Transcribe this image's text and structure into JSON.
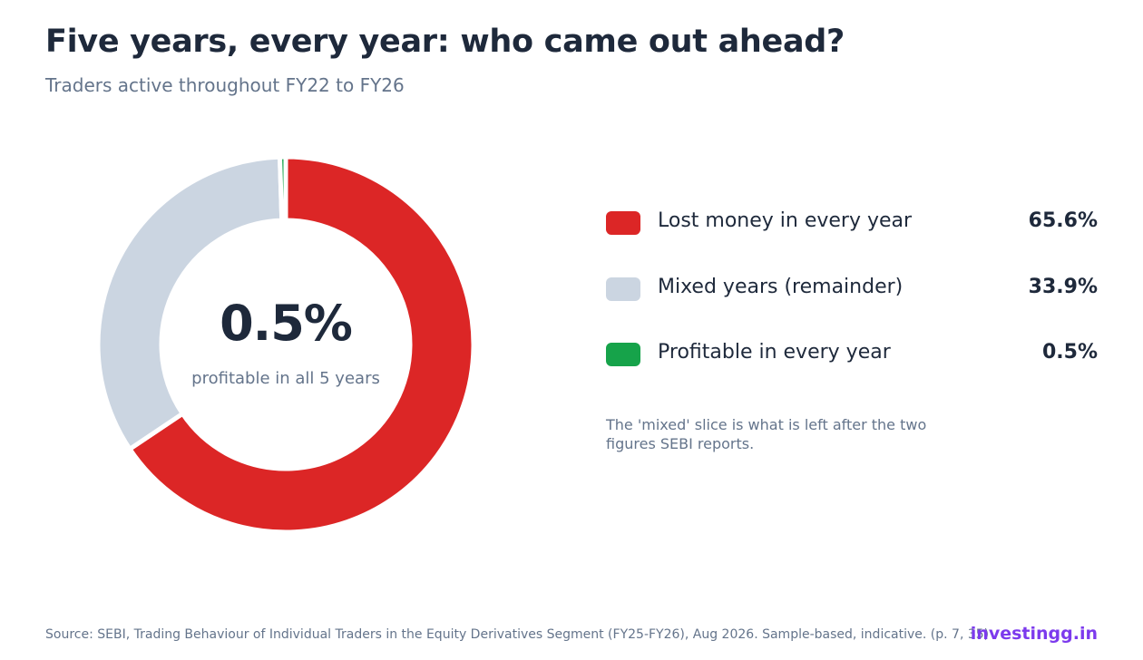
{
  "title": "Five years, every year: who came out ahead?",
  "subtitle": "Traders active throughout FY22 to FY26",
  "center": {
    "value": "0.5%",
    "label": "profitable in all 5 years"
  },
  "legend": [
    {
      "label": "Lost money in every year",
      "value": "65.6%",
      "color": "#dc2626"
    },
    {
      "label": "Mixed years (remainder)",
      "value": "33.9%",
      "color": "#cbd5e1"
    },
    {
      "label": "Profitable in every year",
      "value": "0.5%",
      "color": "#16a34a"
    }
  ],
  "note": "The 'mixed' slice is what is left after the two figures SEBI reports.",
  "source": "Source: SEBI, Trading Behaviour of Individual Traders in the Equity Derivatives Segment (FY25-FY26), Aug 2026. Sample-based, indicative. (p. 7, 35)",
  "brand": "investingg.in",
  "chart_data": {
    "type": "pie",
    "categories": [
      "Lost money in every year",
      "Mixed years (remainder)",
      "Profitable in every year"
    ],
    "values": [
      65.6,
      33.9,
      0.5
    ],
    "colors": [
      "#dc2626",
      "#cbd5e1",
      "#16a34a"
    ],
    "title": "Five years, every year: who came out ahead?",
    "subtitle": "Traders active throughout FY22 to FY26",
    "donut": true,
    "legend_position": "right"
  }
}
